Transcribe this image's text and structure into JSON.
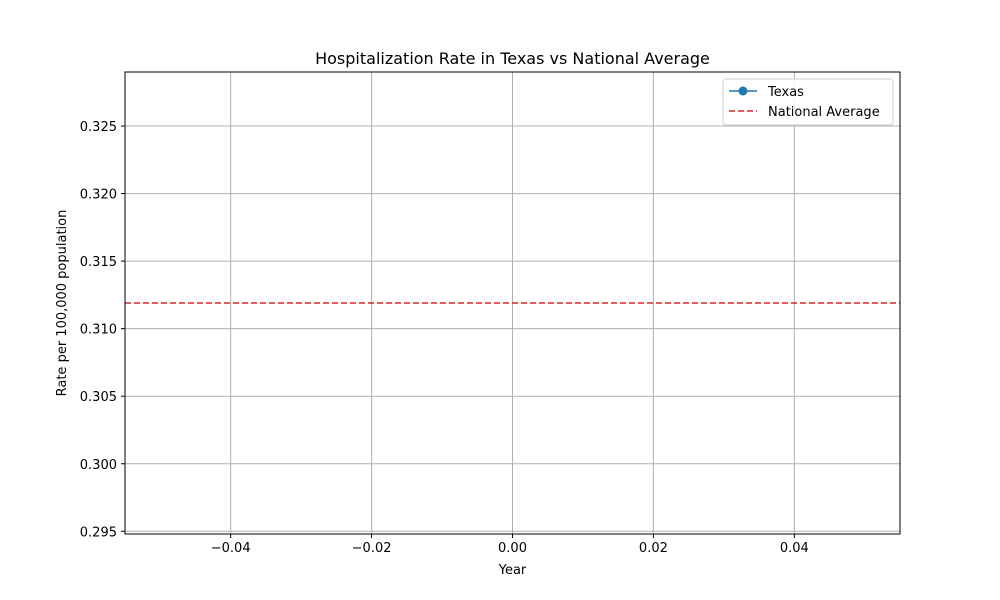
{
  "chart_data": {
    "type": "line",
    "title": "Hospitalization Rate in Texas vs National Average",
    "xlabel": "Year",
    "ylabel": "Rate per 100,000 population",
    "xlim": [
      -0.055,
      0.055
    ],
    "ylim": [
      0.2948,
      0.329
    ],
    "x_ticks": [
      -0.04,
      -0.02,
      0.0,
      0.02,
      0.04
    ],
    "x_tick_labels": [
      "−0.04",
      "−0.02",
      "0.00",
      "0.02",
      "0.04"
    ],
    "y_ticks": [
      0.295,
      0.3,
      0.305,
      0.31,
      0.315,
      0.32,
      0.325
    ],
    "y_tick_labels": [
      "0.295",
      "0.300",
      "0.305",
      "0.310",
      "0.315",
      "0.320",
      "0.325"
    ],
    "grid": true,
    "legend_position": "top-right",
    "series": [
      {
        "name": "Texas",
        "style": "solid-marker",
        "color": "#1f77b4",
        "x": [],
        "y": []
      },
      {
        "name": "National Average",
        "style": "dashed",
        "color": "#d62728",
        "value": 0.3119
      }
    ]
  }
}
